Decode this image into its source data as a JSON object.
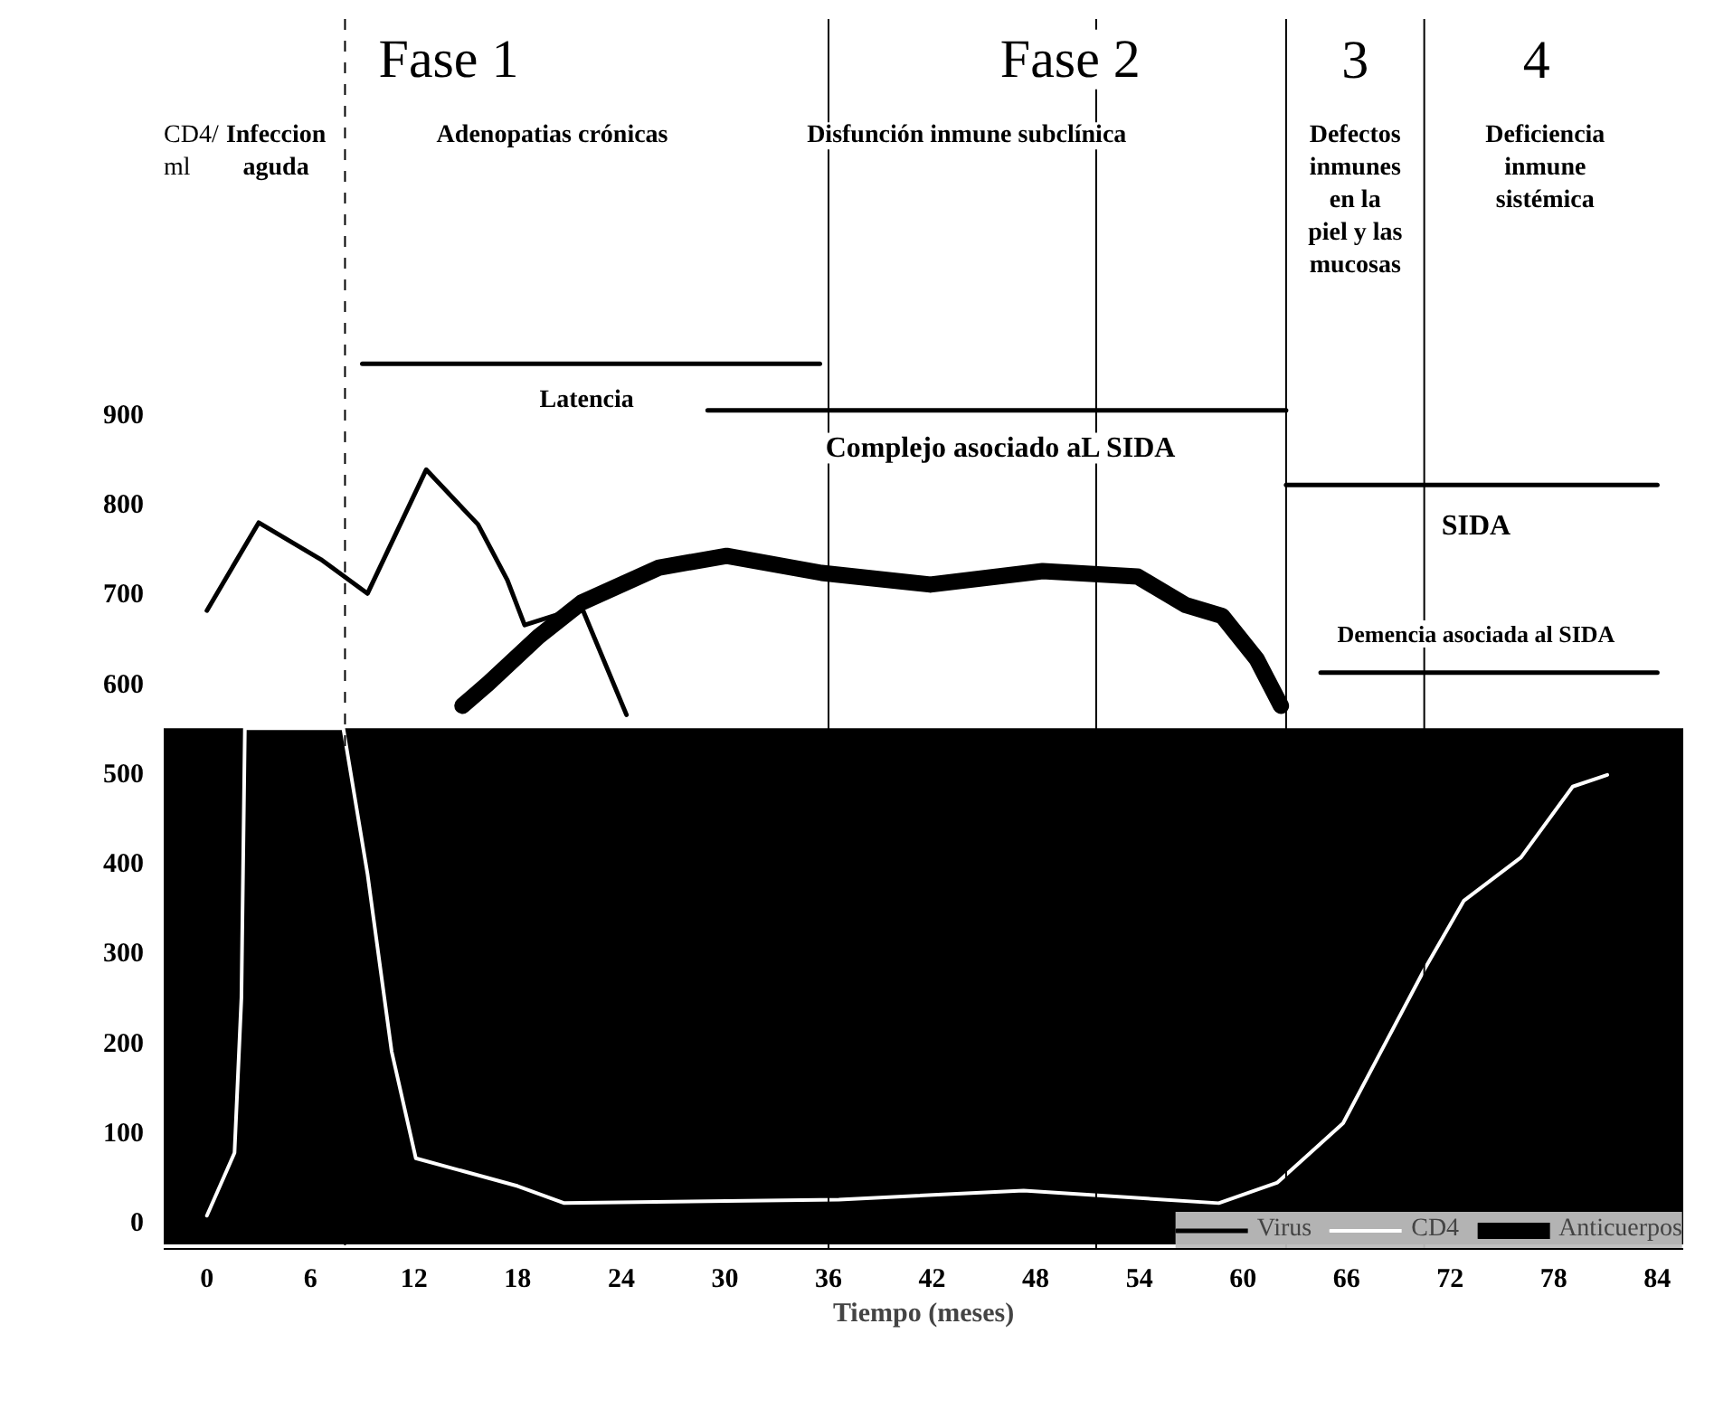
{
  "chart_data": {
    "type": "line",
    "xlabel": "Tiempo (meses)",
    "ylabel": "CD4/\nml",
    "xlim": [
      -2.5,
      85.5
    ],
    "ylim": [
      -30,
      1340
    ],
    "xticks": [
      0,
      6,
      12,
      18,
      24,
      30,
      36,
      42,
      48,
      54,
      60,
      66,
      72,
      78,
      84
    ],
    "yticks": [
      0,
      100,
      200,
      300,
      400,
      500,
      600,
      700,
      800,
      900
    ],
    "grid": false,
    "legend": "bottom right",
    "series": [
      {
        "name": "Virus",
        "color": "#000000",
        "x": [
          0,
          3.0,
          6.6,
          9.3,
          12.7,
          15.7,
          17.4,
          18.4,
          21.7,
          24.3
        ],
        "values": [
          681,
          779,
          738,
          700,
          838,
          777,
          715,
          665,
          685,
          565
        ]
      },
      {
        "name": "CD4",
        "color": "#ffffff",
        "x": [
          0,
          1.6,
          2.0,
          2.2,
          7.9,
          9.3,
          10.7,
          12.1,
          18.0,
          20.7,
          36.6,
          47.3,
          58.6,
          62.0,
          65.8,
          70.5,
          72.8,
          76.1,
          79.1,
          81.1
        ],
        "values": [
          7,
          77,
          250,
          550,
          550,
          388,
          190,
          71,
          40,
          21,
          25,
          35,
          21,
          44,
          110,
          281,
          358,
          406,
          485,
          498
        ]
      },
      {
        "name": "Anticuerpos",
        "color": "#000000",
        "x": [
          14.8,
          16.3,
          19.2,
          21.7,
          26.2,
          30.1,
          35.6,
          41.9,
          48.4,
          53.9,
          56.7,
          58.8,
          60.8,
          62.2
        ],
        "values": [
          575,
          600,
          652,
          690,
          729,
          742,
          723,
          710,
          725,
          719,
          687,
          675,
          627,
          575
        ]
      },
      {
        "color": "#000000",
        "x": [
          9,
          35.5
        ],
        "values": [
          956,
          956
        ]
      },
      {
        "color": "#000000",
        "x": [
          29,
          62.5
        ],
        "values": [
          904,
          904
        ]
      },
      {
        "color": "#000000",
        "x": [
          62.5,
          84
        ],
        "values": [
          821,
          821
        ]
      },
      {
        "color": "#000000",
        "x": [
          64.5,
          84
        ],
        "values": [
          612,
          612
        ]
      }
    ],
    "bands": [
      {
        "axis": "y",
        "from": -25,
        "to": 550,
        "color": "#000000"
      }
    ],
    "ref_lines": [
      {
        "axis": "x",
        "value": 8,
        "color": "#000000",
        "line_style": "dashed"
      },
      {
        "axis": "x",
        "value": 36,
        "color": "#000000"
      },
      {
        "axis": "x",
        "value": 51.5,
        "color": "#000000"
      },
      {
        "axis": "x",
        "value": 62.5,
        "color": "#000000"
      },
      {
        "axis": "x",
        "value": 70.5,
        "color": "#000000"
      }
    ],
    "annotations": [
      "Fase 1",
      "Fase 2",
      "3",
      "4",
      "Infeccion\naguda",
      "Adenopatias crónicas",
      "Disfunción inmune subclínica",
      "Defectos\ninmunes\nen la\npiel y las\nmucosas",
      "Deficiencia\ninmune\nsistémica",
      "Latencia",
      "Complejo asociado aL SIDA",
      "SIDA",
      "Demencia asociada al SIDA"
    ]
  }
}
